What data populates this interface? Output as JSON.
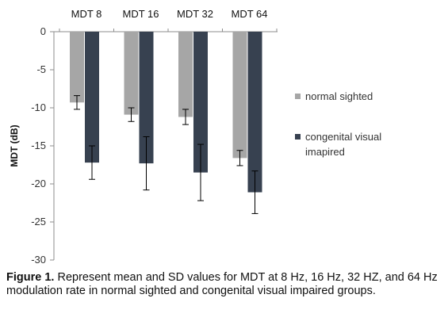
{
  "chart_data": {
    "type": "bar",
    "categories": [
      "MDT 8",
      "MDT 16",
      "MDT 32",
      "MDT 64"
    ],
    "series": [
      {
        "name": "normal sighted",
        "color": "#a6a6a6",
        "values": [
          -9.3,
          -10.9,
          -11.2,
          -16.6
        ],
        "errors": [
          0.9,
          0.9,
          1.0,
          1.0
        ]
      },
      {
        "name": "congenital visual imapired",
        "color": "#374150",
        "values": [
          -17.2,
          -17.3,
          -18.5,
          -21.1
        ],
        "errors": [
          2.2,
          3.5,
          3.7,
          2.8
        ]
      }
    ],
    "ylabel": "MDT  (dB)",
    "ylim": [
      -30,
      0
    ],
    "yticks": [
      0,
      -5,
      -10,
      -15,
      -20,
      -25,
      -30
    ],
    "ytick_labels": [
      "0",
      "-5",
      "-10",
      "-15",
      "-20",
      "-25",
      "-30"
    ],
    "category_labels_position": "top",
    "legend_position": "right",
    "grid": false
  },
  "caption": {
    "label": "Figure 1.",
    "text": " Represent mean and SD values for MDT at 8 Hz, 16 Hz, 32 HZ, and 64 Hz modulation rate in normal sighted and congenital visual impaired groups."
  }
}
